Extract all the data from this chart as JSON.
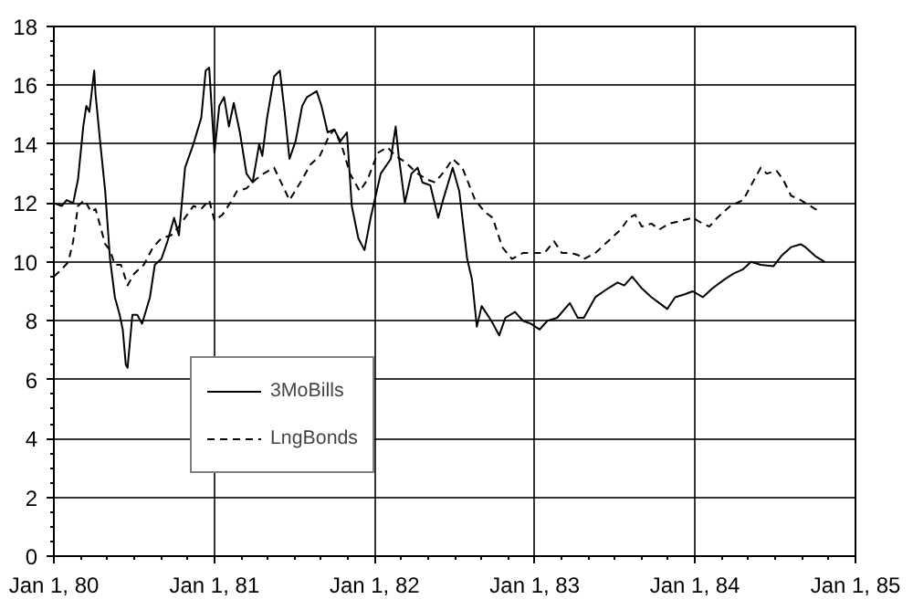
{
  "chart_data": {
    "type": "line",
    "xlim": [
      "1980-01-01",
      "1985-01-01"
    ],
    "ylim": [
      0,
      18
    ],
    "xticks": [
      {
        "value": "1980-01-01",
        "label": "Jan 1, 80"
      },
      {
        "value": "1981-01-01",
        "label": "Jan 1, 81"
      },
      {
        "value": "1982-01-01",
        "label": "Jan 1, 82"
      },
      {
        "value": "1983-01-01",
        "label": "Jan 1, 83"
      },
      {
        "value": "1984-01-01",
        "label": "Jan 1, 84"
      },
      {
        "value": "1985-01-01",
        "label": "Jan 1, 85"
      }
    ],
    "yticks": [
      0,
      2,
      4,
      6,
      8,
      10,
      12,
      14,
      16,
      18
    ],
    "grid": true,
    "legend": "bottom left",
    "series": [
      {
        "name": "3MoBills",
        "color": "#000000",
        "line_style": "solid",
        "x": [
          "1980-01-01",
          "1980-01-19",
          "1980-01-30",
          "1980-02-14",
          "1980-02-25",
          "1980-03-08",
          "1980-03-15",
          "1980-03-22",
          "1980-04-02",
          "1980-04-05",
          "1980-04-16",
          "1980-04-27",
          "1980-05-08",
          "1980-05-19",
          "1980-05-30",
          "1980-06-06",
          "1980-06-13",
          "1980-06-17",
          "1980-06-28",
          "1980-07-09",
          "1980-07-20",
          "1980-08-07",
          "1980-08-18",
          "1980-09-02",
          "1980-09-16",
          "1980-10-01",
          "1980-10-12",
          "1980-10-26",
          "1980-11-14",
          "1980-12-02",
          "1980-12-12",
          "1980-12-20",
          "1981-01-01",
          "1981-01-12",
          "1981-01-23",
          "1981-02-03",
          "1981-02-14",
          "1981-02-28",
          "1981-03-15",
          "1981-03-29",
          "1981-04-13",
          "1981-04-20",
          "1981-05-01",
          "1981-05-17",
          "1981-05-30",
          "1981-06-10",
          "1981-06-21",
          "1981-07-05",
          "1981-07-20",
          "1981-07-31",
          "1981-08-22",
          "1981-09-02",
          "1981-09-16",
          "1981-10-01",
          "1981-10-15",
          "1981-10-30",
          "1981-11-10",
          "1981-11-25",
          "1981-12-09",
          "1981-12-23",
          "1982-01-15",
          "1982-02-07",
          "1982-02-18",
          "1982-02-25",
          "1982-03-11",
          "1982-03-26",
          "1982-04-09",
          "1982-04-20",
          "1982-05-08",
          "1982-05-26",
          "1982-06-06",
          "1982-06-28",
          "1982-07-13",
          "1982-07-31",
          "1982-08-11",
          "1982-08-22",
          "1982-09-02",
          "1982-09-24",
          "1982-10-12",
          "1982-10-26",
          "1982-11-17",
          "1982-12-05",
          "1982-12-23",
          "1983-01-12",
          "1983-01-30",
          "1983-02-21",
          "1983-03-22",
          "1983-04-09",
          "1983-04-23",
          "1983-05-19",
          "1983-06-17",
          "1983-07-09",
          "1983-07-24",
          "1983-08-11",
          "1983-09-02",
          "1983-09-24",
          "1983-10-12",
          "1983-10-30",
          "1983-11-17",
          "1983-12-09",
          "1983-12-27",
          "1984-01-19",
          "1984-02-10",
          "1984-03-08",
          "1984-03-29",
          "1984-04-20",
          "1984-05-08",
          "1984-05-30",
          "1984-06-28",
          "1984-07-16",
          "1984-08-07",
          "1984-08-29",
          "1984-09-09",
          "1984-10-01",
          "1984-10-23"
        ],
        "values": [
          12.0,
          11.9,
          12.1,
          12.0,
          12.8,
          14.6,
          15.3,
          15.1,
          16.5,
          15.7,
          14.0,
          12.4,
          10.1,
          8.8,
          8.2,
          7.7,
          6.5,
          6.4,
          8.2,
          8.2,
          7.9,
          8.8,
          9.9,
          10.1,
          10.7,
          11.5,
          10.9,
          13.2,
          14.0,
          14.9,
          16.5,
          16.6,
          13.7,
          15.3,
          15.6,
          14.6,
          15.4,
          14.4,
          13.0,
          12.7,
          14.0,
          13.6,
          14.9,
          16.3,
          16.5,
          15.1,
          13.5,
          14.1,
          15.3,
          15.6,
          15.8,
          15.3,
          14.4,
          14.5,
          14.1,
          14.4,
          11.9,
          10.8,
          10.4,
          11.5,
          13.0,
          13.5,
          14.6,
          13.6,
          12.0,
          13.0,
          13.2,
          12.7,
          12.6,
          11.5,
          12.1,
          13.2,
          12.4,
          10.1,
          9.4,
          7.8,
          8.5,
          8.0,
          7.5,
          8.1,
          8.3,
          8.0,
          7.9,
          7.7,
          8.0,
          8.1,
          8.6,
          8.1,
          8.1,
          8.8,
          9.1,
          9.3,
          9.2,
          9.5,
          9.1,
          8.8,
          8.6,
          8.4,
          8.8,
          8.9,
          9.0,
          8.8,
          9.1,
          9.4,
          9.6,
          9.75,
          10.0,
          9.9,
          9.85,
          10.2,
          10.5,
          10.6,
          10.5,
          10.2,
          10.0
        ]
      },
      {
        "name": "LngBonds",
        "color": "#000000",
        "line_style": "dashed",
        "x": [
          "1980-01-01",
          "1980-01-19",
          "1980-02-03",
          "1980-02-14",
          "1980-02-25",
          "1980-03-11",
          "1980-03-26",
          "1980-04-05",
          "1980-04-16",
          "1980-04-27",
          "1980-05-08",
          "1980-05-19",
          "1980-06-02",
          "1980-06-17",
          "1980-07-02",
          "1980-07-24",
          "1980-08-14",
          "1980-09-02",
          "1980-09-24",
          "1980-10-12",
          "1980-10-26",
          "1980-11-14",
          "1980-12-02",
          "1980-12-20",
          "1981-01-01",
          "1981-01-19",
          "1981-02-10",
          "1981-02-21",
          "1981-03-15",
          "1981-04-05",
          "1981-04-23",
          "1981-05-17",
          "1981-06-21",
          "1981-07-20",
          "1981-08-07",
          "1981-08-29",
          "1981-09-20",
          "1981-10-01",
          "1981-10-19",
          "1981-11-06",
          "1981-11-28",
          "1981-12-16",
          "1982-01-08",
          "1982-01-30",
          "1982-02-18",
          "1982-03-11",
          "1982-04-09",
          "1982-05-01",
          "1982-05-19",
          "1982-06-10",
          "1982-06-28",
          "1982-07-20",
          "1982-08-18",
          "1982-09-09",
          "1982-09-27",
          "1982-10-19",
          "1982-11-10",
          "1982-12-05",
          "1983-01-04",
          "1983-01-23",
          "1983-02-14",
          "1983-03-04",
          "1983-03-26",
          "1983-04-16",
          "1983-04-23",
          "1983-05-19",
          "1983-06-17",
          "1983-07-16",
          "1983-08-04",
          "1983-08-18",
          "1983-09-02",
          "1983-09-24",
          "1983-10-12",
          "1983-11-03",
          "1983-12-02",
          "1983-12-27",
          "1984-01-19",
          "1984-02-03",
          "1984-02-21",
          "1984-03-22",
          "1984-04-20",
          "1984-05-08",
          "1984-05-30",
          "1984-06-13",
          "1984-07-05",
          "1984-07-20",
          "1984-08-07",
          "1984-08-29",
          "1984-09-20",
          "1984-10-01",
          "1984-10-15"
        ],
        "values": [
          9.5,
          9.75,
          10.0,
          10.7,
          11.9,
          12.1,
          11.7,
          11.8,
          11.2,
          10.6,
          10.4,
          9.9,
          9.9,
          9.2,
          9.6,
          9.9,
          10.5,
          10.8,
          10.9,
          11.2,
          11.5,
          11.9,
          11.8,
          12.1,
          11.4,
          11.6,
          12.1,
          12.4,
          12.5,
          12.8,
          13.0,
          13.2,
          12.1,
          12.8,
          13.3,
          13.6,
          14.3,
          14.5,
          13.9,
          13.0,
          12.4,
          12.8,
          13.7,
          13.9,
          13.6,
          13.4,
          13.0,
          12.8,
          12.7,
          13.1,
          13.5,
          13.2,
          12.1,
          11.7,
          11.5,
          10.5,
          10.1,
          10.3,
          10.3,
          10.3,
          10.7,
          10.3,
          10.3,
          10.2,
          10.1,
          10.3,
          10.7,
          11.1,
          11.5,
          11.6,
          11.2,
          11.3,
          11.1,
          11.3,
          11.4,
          11.5,
          11.3,
          11.2,
          11.5,
          11.9,
          12.1,
          12.6,
          13.2,
          13.0,
          13.1,
          12.8,
          12.25,
          12.1,
          11.9,
          11.8,
          11.7
        ]
      }
    ]
  }
}
